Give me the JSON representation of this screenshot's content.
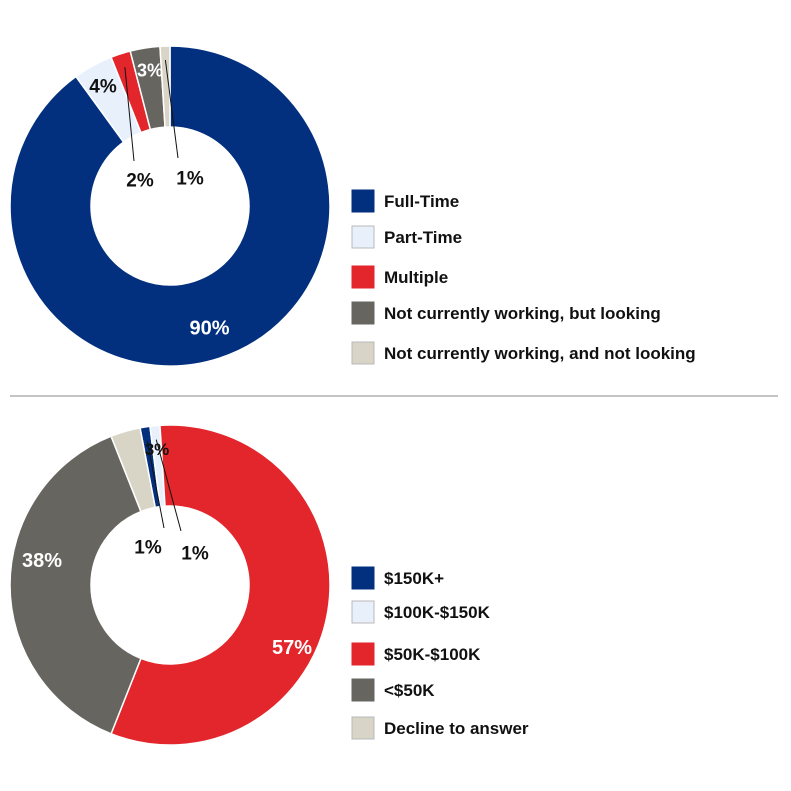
{
  "chart_data": [
    {
      "type": "pie",
      "variant": "donut",
      "title": "",
      "categories": [
        "Full-Time",
        "Part-Time",
        "Multiple",
        "Not currently working, but looking",
        "Not currently working, and not looking"
      ],
      "values": [
        90,
        4,
        2,
        3,
        1
      ],
      "labels": [
        "90%",
        "4%",
        "2%",
        "3%",
        "1%"
      ],
      "colors": [
        "#02307f",
        "#e8f1fb",
        "#e2262b",
        "#666560",
        "#d8d4c6"
      ],
      "legend": "right"
    },
    {
      "type": "pie",
      "variant": "donut",
      "title": "",
      "categories": [
        "$150K+",
        "$100K-$150K",
        "$50K-$100K",
        "<$50K",
        "Decline to answer"
      ],
      "values": [
        1,
        1,
        57,
        38,
        3
      ],
      "labels": [
        "1%",
        "1%",
        "57%",
        "38%",
        "3%"
      ],
      "colors": [
        "#02307f",
        "#e8f1fb",
        "#e2262b",
        "#666560",
        "#d8d4c6"
      ],
      "legend": "right"
    }
  ]
}
